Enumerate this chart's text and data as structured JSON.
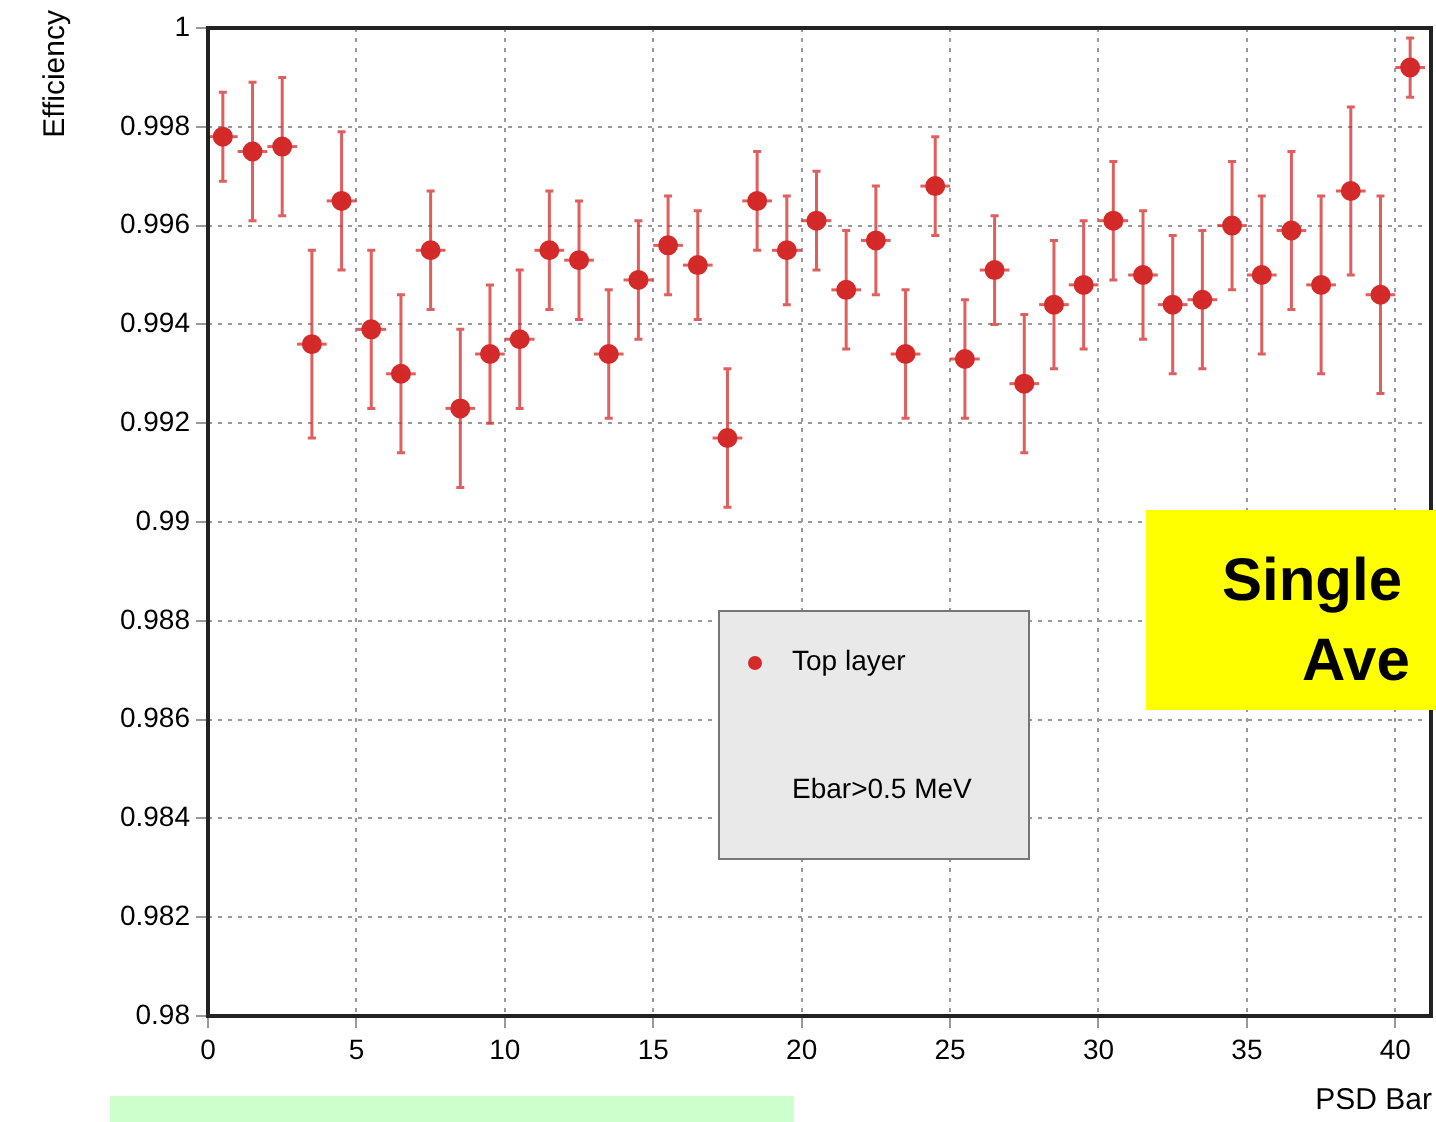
{
  "chart_data": {
    "type": "scatter",
    "xlabel": "PSD Bar",
    "ylabel": "Efficiency",
    "annotations": [
      "Ebar>0.5 MeV",
      "Single",
      "Ave"
    ],
    "x": [
      0.5,
      1.5,
      2.5,
      3.5,
      4.5,
      5.5,
      6.5,
      7.5,
      8.5,
      9.5,
      10.5,
      11.5,
      12.5,
      13.5,
      14.5,
      15.5,
      16.5,
      17.5,
      18.5,
      19.5,
      20.5,
      21.5,
      22.5,
      23.5,
      24.5,
      25.5,
      26.5,
      27.5,
      28.5,
      29.5,
      30.5,
      31.5,
      32.5,
      33.5,
      34.5,
      35.5,
      36.5,
      37.5,
      38.5,
      39.5,
      40.5
    ],
    "series": [
      {
        "name": "Top layer",
        "color": "#d42a2a",
        "values": [
          0.9978,
          0.9975,
          0.9976,
          0.9936,
          0.9965,
          0.9939,
          0.993,
          0.9955,
          0.9923,
          0.9934,
          0.9937,
          0.9955,
          0.9953,
          0.9934,
          0.9949,
          0.9956,
          0.9952,
          0.9917,
          0.9965,
          0.9955,
          0.9961,
          0.9947,
          0.9957,
          0.9934,
          0.9968,
          0.9933,
          0.9951,
          0.9928,
          0.9944,
          0.9948,
          0.9961,
          0.995,
          0.9944,
          0.9945,
          0.996,
          0.995,
          0.9959,
          0.9948,
          0.9967,
          0.9946,
          0.9992
        ],
        "errors": [
          0.0009,
          0.0014,
          0.0014,
          0.0019,
          0.0014,
          0.0016,
          0.0016,
          0.0012,
          0.0016,
          0.0014,
          0.0014,
          0.0012,
          0.0012,
          0.0013,
          0.0012,
          0.001,
          0.0011,
          0.0014,
          0.001,
          0.0011,
          0.001,
          0.0012,
          0.0011,
          0.0013,
          0.001,
          0.0012,
          0.0011,
          0.0014,
          0.0013,
          0.0013,
          0.0012,
          0.0013,
          0.0014,
          0.0014,
          0.0013,
          0.0016,
          0.0016,
          0.0018,
          0.0017,
          0.002,
          0.0006
        ],
        "xerrors": [
          0.5,
          0.5,
          0.5,
          0.5,
          0.5,
          0.5,
          0.5,
          0.5,
          0.5,
          0.5,
          0.5,
          0.5,
          0.5,
          0.5,
          0.5,
          0.5,
          0.5,
          0.5,
          0.5,
          0.5,
          0.5,
          0.5,
          0.5,
          0.5,
          0.5,
          0.5,
          0.5,
          0.5,
          0.5,
          0.5,
          0.5,
          0.5,
          0.5,
          0.5,
          0.5,
          0.5,
          0.5,
          0.5,
          0.5,
          0.5,
          0.5
        ]
      }
    ],
    "xlim": [
      0,
      41
    ],
    "xticks": [
      0,
      5,
      10,
      15,
      20,
      25,
      30,
      35,
      40
    ],
    "ylim": [
      0.98,
      1
    ],
    "yticks": [
      0.98,
      0.982,
      0.984,
      0.986,
      0.988,
      0.99,
      0.992,
      0.994,
      0.996,
      0.998,
      1
    ],
    "grid": true,
    "legend": "bottom",
    "marker": "circle"
  }
}
